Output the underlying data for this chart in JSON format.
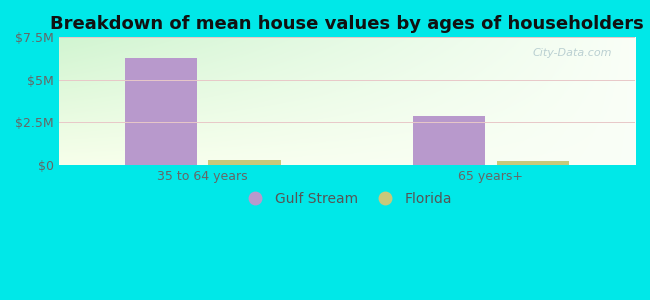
{
  "title": "Breakdown of mean house values by ages of householders",
  "categories": [
    "35 to 64 years",
    "65 years+"
  ],
  "gulf_stream_values": [
    6300000,
    2850000
  ],
  "florida_values": [
    300000,
    250000
  ],
  "gulf_stream_color": "#b899cc",
  "florida_color": "#c8c87a",
  "ylim": [
    0,
    7500000
  ],
  "yticks": [
    0,
    2500000,
    5000000,
    7500000
  ],
  "ytick_labels": [
    "$0",
    "$2.5M",
    "$5M",
    "$7.5M"
  ],
  "legend_labels": [
    "Gulf Stream",
    "Florida"
  ],
  "fig_bg_color": "#00e8e8",
  "bar_width": 0.25,
  "title_fontsize": 13,
  "tick_fontsize": 9,
  "legend_fontsize": 10,
  "x_positions": [
    0.5,
    1.5
  ],
  "xlim": [
    0.0,
    2.0
  ]
}
